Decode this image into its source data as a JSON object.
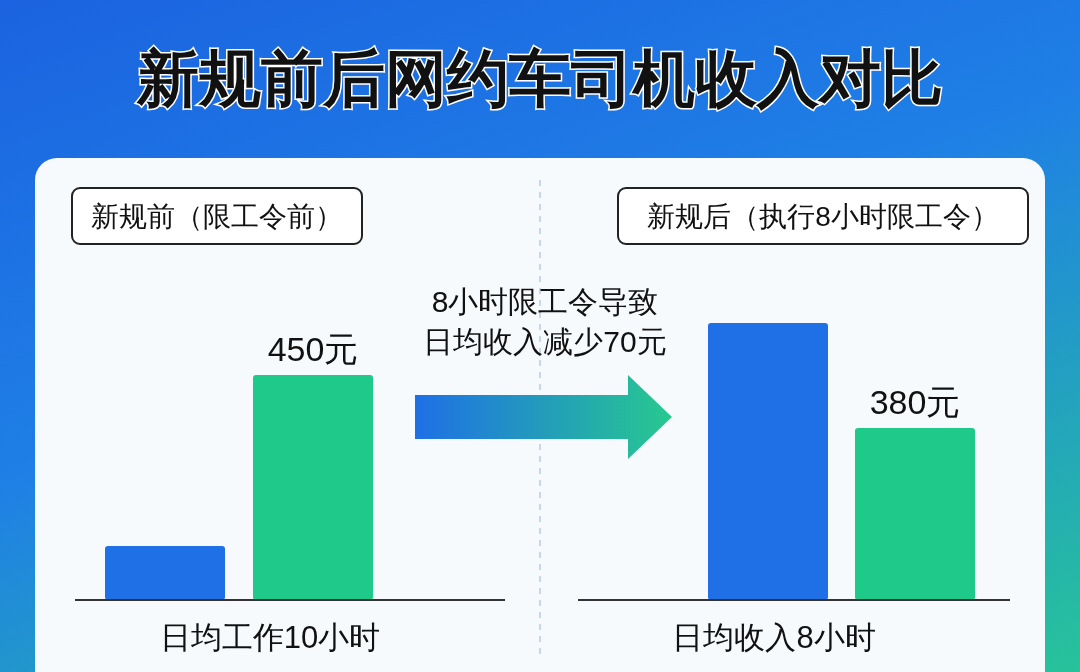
{
  "chart_data": [
    {
      "type": "bar",
      "title": "新规前后网约车司机收入对比",
      "subtitle": "新规前（限工令前）",
      "xlabel": "日均工作10小时",
      "categories": [
        null,
        null
      ],
      "values": [
        108,
        450
      ],
      "colors": [
        "#1f6fe6",
        "#1ec98a"
      ],
      "value_labels": [
        null,
        "450元"
      ],
      "annotations": [
        "8小时限工令导致日均收入减少70元"
      ]
    },
    {
      "type": "bar",
      "subtitle": "新规后（执行8小时限工令）",
      "xlabel": "日均收入8小时",
      "categories": [
        null,
        null
      ],
      "values": [
        612,
        380
      ],
      "colors": [
        "#1f6fe6",
        "#1ec98a"
      ],
      "value_labels": [
        null,
        "380元"
      ]
    }
  ]
}
